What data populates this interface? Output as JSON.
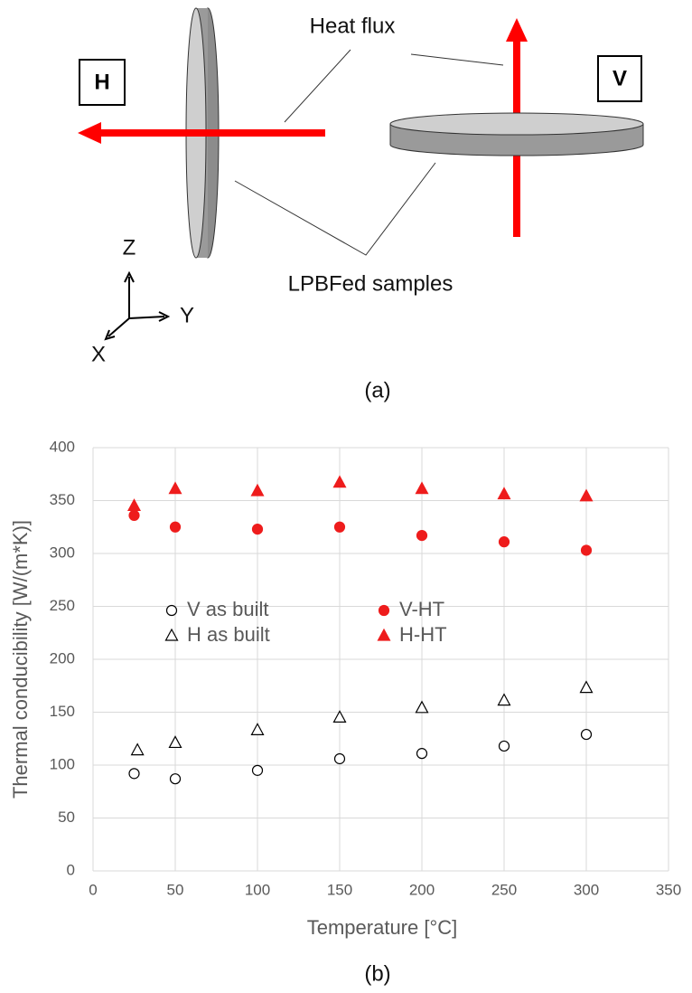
{
  "diagram": {
    "heat_flux": "Heat flux",
    "samples": "LPBFed samples",
    "box_h": "H",
    "box_v": "V",
    "axis_z": "Z",
    "axis_y": "Y",
    "axis_x": "X",
    "caption": "(a)"
  },
  "chart_data": {
    "type": "scatter",
    "caption": "(b)",
    "x_label": "Temperature [°C]",
    "y_label": "Thermal conducibility  [W/(m*K)]",
    "xlim": [
      0,
      350
    ],
    "xticks": [
      0,
      50,
      100,
      150,
      200,
      250,
      300,
      350
    ],
    "ylim": [
      0,
      400
    ],
    "yticks": [
      0,
      50,
      100,
      150,
      200,
      250,
      300,
      350,
      400
    ],
    "grid": true,
    "series": [
      {
        "name": "V as built",
        "marker": "circle",
        "filled": false,
        "color": "#000000",
        "x": [
          25,
          50,
          100,
          150,
          200,
          250,
          300
        ],
        "values": [
          92,
          87,
          95,
          106,
          111,
          118,
          129
        ]
      },
      {
        "name": "V-HT",
        "marker": "circle",
        "filled": true,
        "color": "#ee1c1c",
        "x": [
          25,
          50,
          100,
          150,
          200,
          250,
          300
        ],
        "values": [
          336,
          325,
          323,
          325,
          317,
          311,
          303
        ]
      },
      {
        "name": "H as built",
        "marker": "triangle",
        "filled": false,
        "color": "#000000",
        "x": [
          27,
          50,
          100,
          150,
          200,
          250,
          300
        ],
        "values": [
          114,
          121,
          133,
          145,
          154,
          161,
          173
        ]
      },
      {
        "name": "H-HT",
        "marker": "triangle",
        "filled": true,
        "color": "#ee1c1c",
        "x": [
          25,
          50,
          100,
          150,
          200,
          250,
          300
        ],
        "values": [
          345,
          361,
          359,
          367,
          361,
          356,
          354
        ]
      }
    ]
  }
}
